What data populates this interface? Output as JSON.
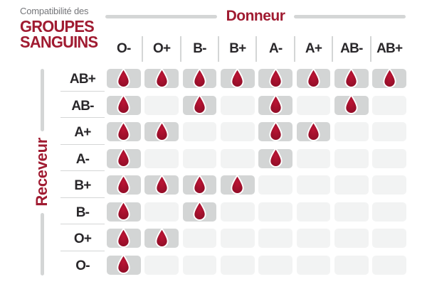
{
  "title": {
    "subtitle": "Compatibilité des",
    "main_line1": "GROUPES",
    "main_line2": "SANGUINS"
  },
  "chart_data": {
    "type": "table",
    "title": "Compatibilité des groupes sanguins",
    "columns_label": "Donneur",
    "rows_label": "Receveur",
    "columns": [
      "O-",
      "O+",
      "B-",
      "B+",
      "A-",
      "A+",
      "AB-",
      "AB+"
    ],
    "rows": [
      "AB+",
      "AB-",
      "A+",
      "A-",
      "B+",
      "B-",
      "O+",
      "O-"
    ],
    "cell_icon": "blood-drop-icon",
    "matrix": [
      [
        1,
        1,
        1,
        1,
        1,
        1,
        1,
        1
      ],
      [
        1,
        0,
        1,
        0,
        1,
        0,
        1,
        0
      ],
      [
        1,
        1,
        0,
        0,
        1,
        1,
        0,
        0
      ],
      [
        1,
        0,
        0,
        0,
        1,
        0,
        0,
        0
      ],
      [
        1,
        1,
        1,
        1,
        0,
        0,
        0,
        0
      ],
      [
        1,
        0,
        1,
        0,
        0,
        0,
        0,
        0
      ],
      [
        1,
        1,
        0,
        0,
        0,
        0,
        0,
        0
      ],
      [
        1,
        0,
        0,
        0,
        0,
        0,
        0,
        0
      ]
    ]
  },
  "colors": {
    "accent_red": "#a01b31",
    "drop_red": "#bb1434",
    "drop_red_dark": "#8c0d26",
    "cell_filled": "#d3d5d5",
    "cell_empty": "#f2f3f3",
    "line_gray": "#d4d6d6",
    "header_text": "#29272a",
    "subtitle_gray": "#75767a"
  }
}
